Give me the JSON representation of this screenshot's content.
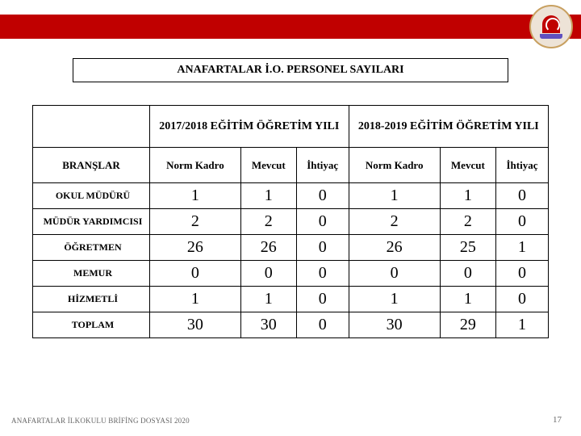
{
  "header": {
    "band_color": "#c00000",
    "logo_colors": {
      "ring": "#c8a060",
      "bg": "#ede3d7",
      "emblem": "#c00000",
      "book": "#6050c0"
    }
  },
  "title": "ANAFARTALAR İ.O.    PERSONEL SAYILARI",
  "table": {
    "branslar_label": "BRANŞLAR",
    "year1": "2017/2018 EĞİTİM ÖĞRETİM YILI",
    "year2": "2018-2019 EĞİTİM ÖĞRETİM YILI",
    "subcols": [
      "Norm Kadro",
      "Mevcut",
      "İhtiyaç"
    ],
    "rows": [
      {
        "label": "OKUL MÜDÜRÜ",
        "v": [
          1,
          1,
          0,
          1,
          1,
          0
        ]
      },
      {
        "label": "MÜDÜR YARDIMCISI",
        "v": [
          2,
          2,
          0,
          2,
          2,
          0
        ]
      },
      {
        "label": "ÖĞRETMEN",
        "v": [
          26,
          26,
          0,
          26,
          25,
          1
        ]
      },
      {
        "label": "MEMUR",
        "v": [
          0,
          0,
          0,
          0,
          0,
          0
        ]
      },
      {
        "label": "HİZMETLİ",
        "v": [
          1,
          1,
          0,
          1,
          1,
          0
        ]
      }
    ],
    "total": {
      "label": "TOPLAM",
      "v": [
        30,
        30,
        0,
        30,
        29,
        1
      ]
    }
  },
  "footer": "ANAFARTALAR İLKOKULU BRİFİNG DOSYASI  2020",
  "page_number": "17"
}
